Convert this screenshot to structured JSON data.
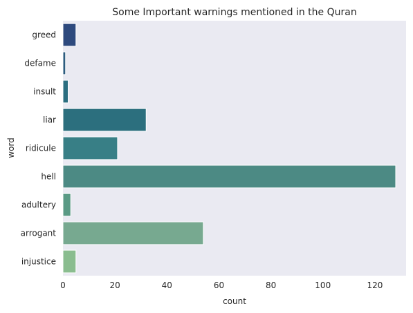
{
  "chart_data": {
    "type": "bar",
    "orientation": "horizontal",
    "title": "Some Important warnings mentioned in the Quran",
    "xlabel": "count",
    "ylabel": "word",
    "categories": [
      "greed",
      "defame",
      "insult",
      "liar",
      "ridicule",
      "hell",
      "adultery",
      "arrogant",
      "injustice"
    ],
    "values": [
      5,
      1,
      2,
      32,
      21,
      128,
      3,
      54,
      5
    ],
    "colors": [
      "#2e4a7e",
      "#2e5d80",
      "#2b6e80",
      "#2c6f7e",
      "#387f86",
      "#4c8a84",
      "#5a9a85",
      "#77a990",
      "#8abd8f"
    ],
    "xlim": [
      0,
      132
    ],
    "xticks": [
      "0",
      "20",
      "40",
      "60",
      "80",
      "100",
      "120"
    ],
    "xtick_values": [
      0,
      20,
      40,
      60,
      80,
      100,
      120
    ],
    "grid": false,
    "background": "#eaeaf2"
  }
}
